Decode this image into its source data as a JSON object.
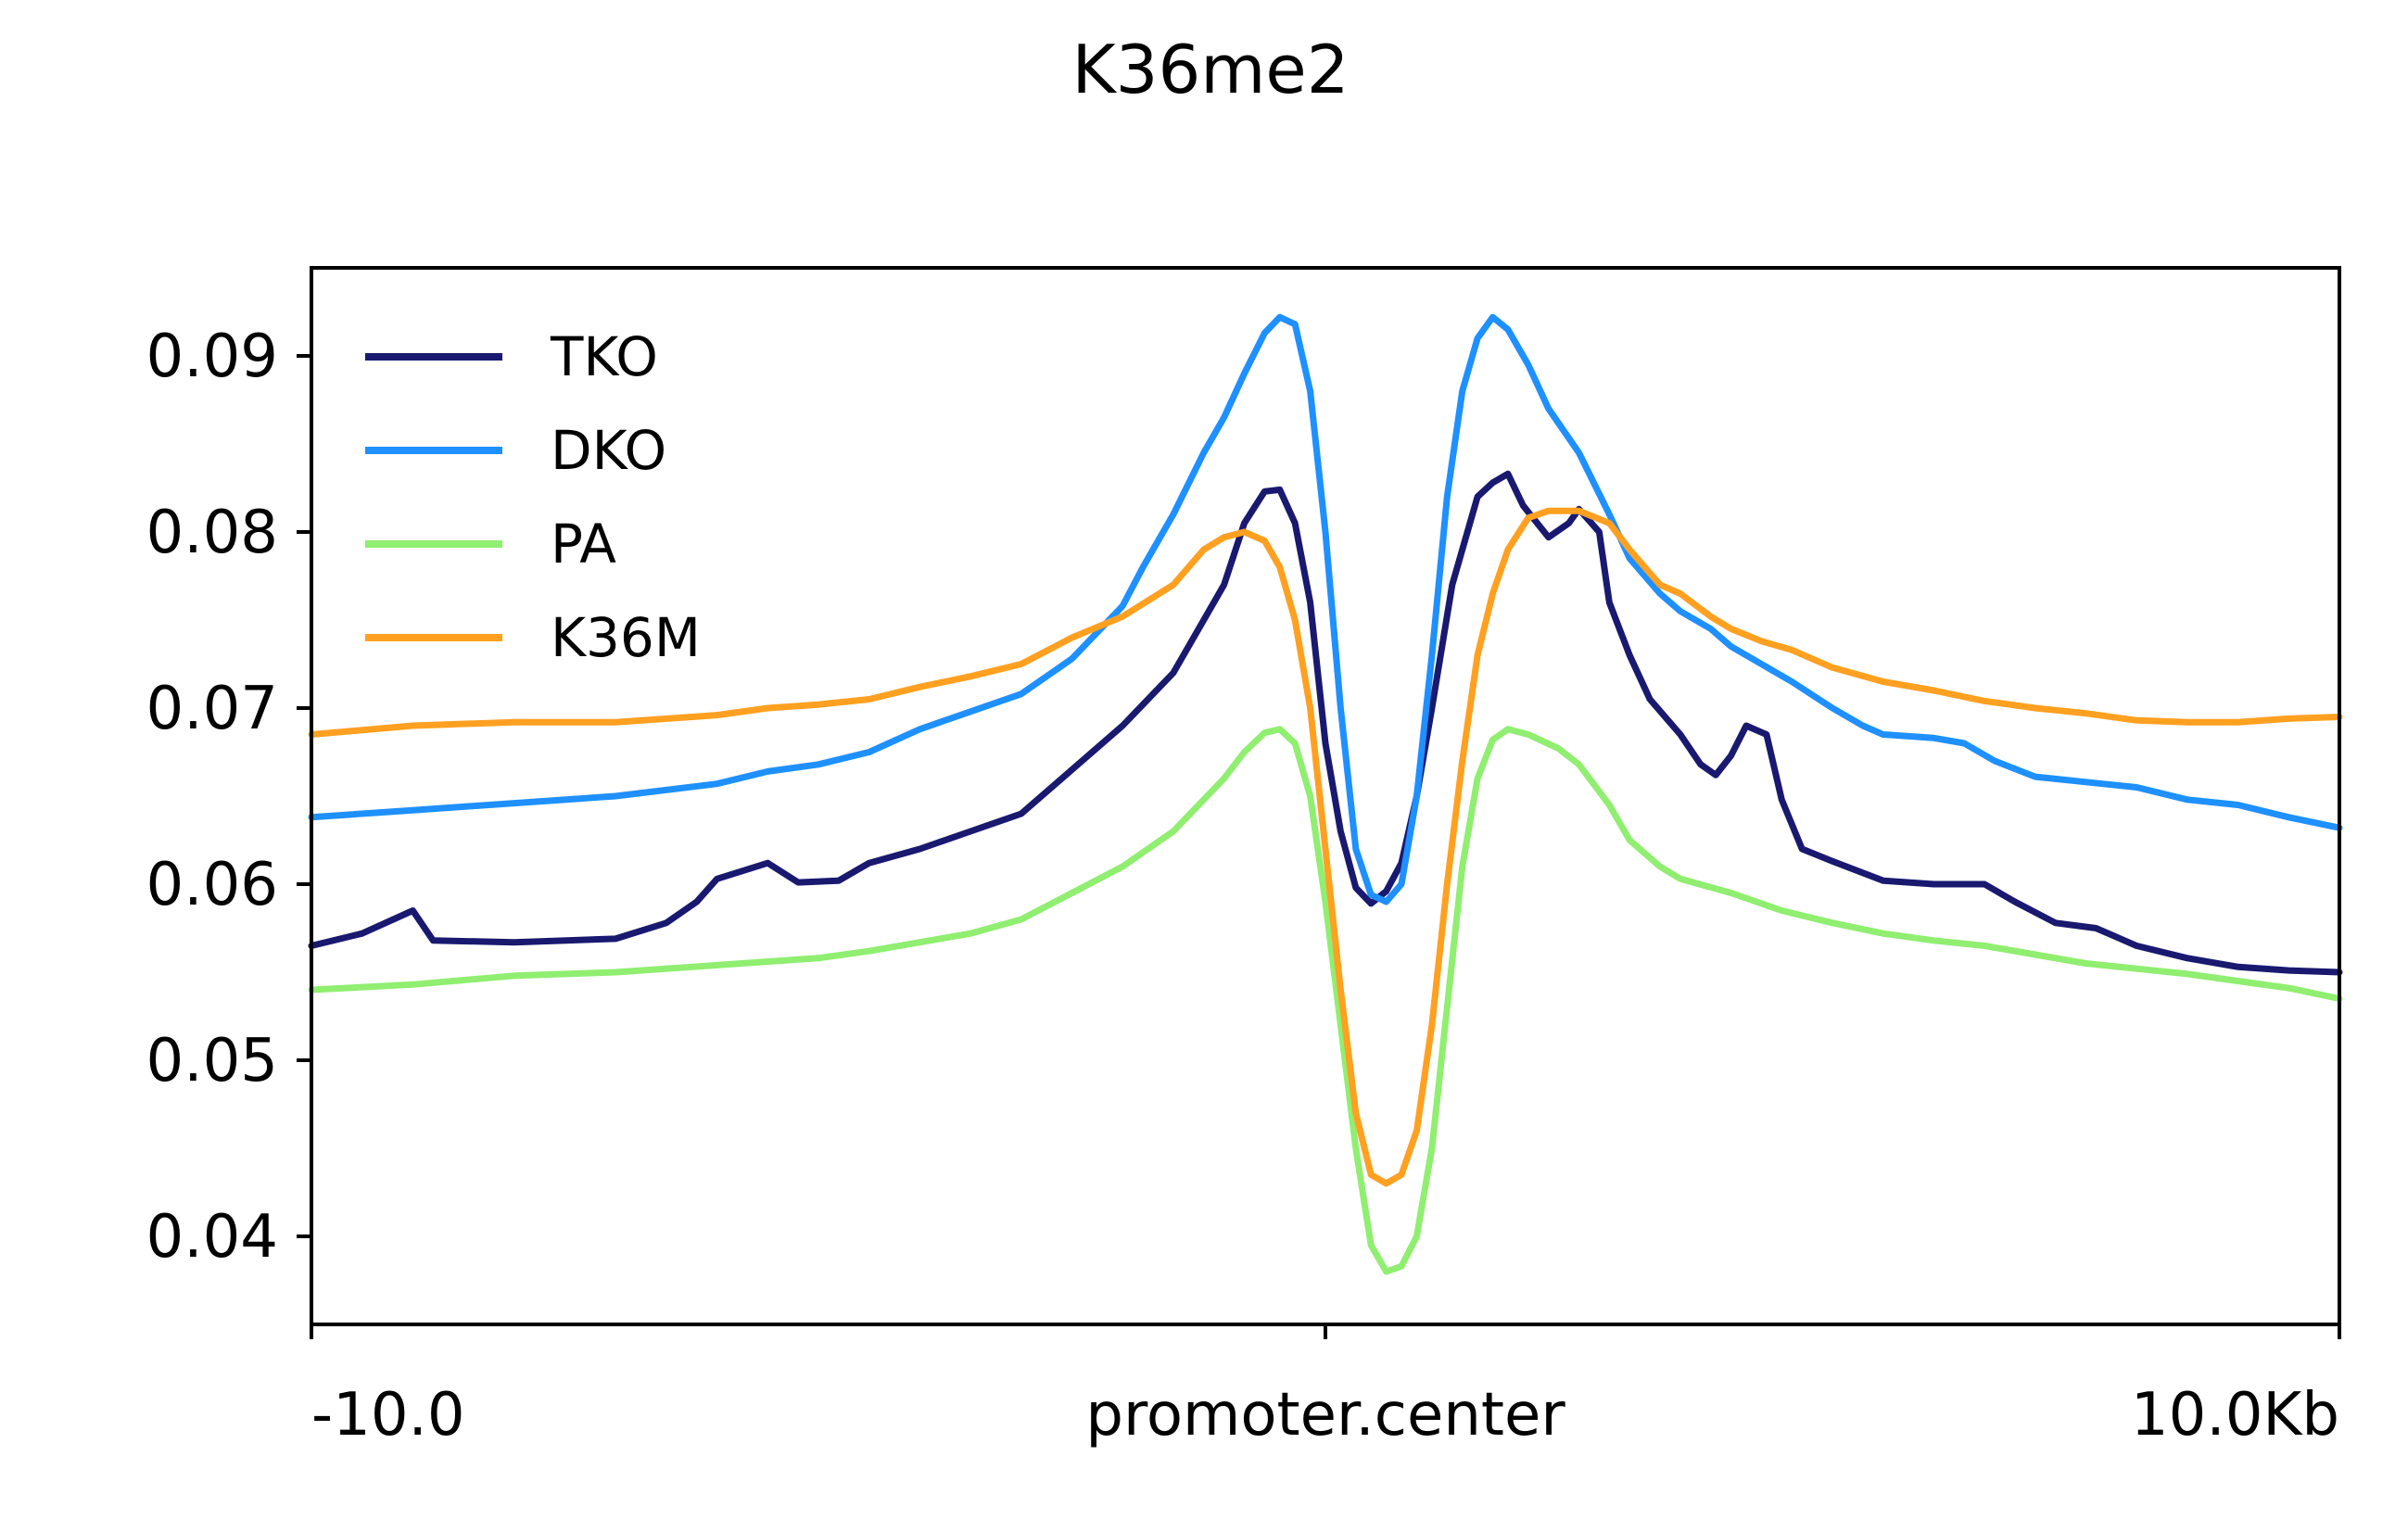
{
  "chart_data": {
    "type": "line",
    "title": "K36me2",
    "xlabel": "",
    "ylabel": "",
    "xlim": [
      -10,
      10
    ],
    "ylim": [
      0.035,
      0.095
    ],
    "x_ticks": [
      {
        "value": -10,
        "label": "-10.0"
      },
      {
        "value": 0,
        "label": "promoter.center"
      },
      {
        "value": 10,
        "label": "10.0Kb"
      }
    ],
    "y_ticks": [
      {
        "value": 0.04,
        "label": "0.04"
      },
      {
        "value": 0.05,
        "label": "0.05"
      },
      {
        "value": 0.06,
        "label": "0.06"
      },
      {
        "value": 0.07,
        "label": "0.07"
      },
      {
        "value": 0.08,
        "label": "0.08"
      },
      {
        "value": 0.09,
        "label": "0.09"
      }
    ],
    "legend_position": "top-left",
    "grid": false,
    "series": [
      {
        "name": "TKO",
        "color": "#191970",
        "points": [
          [
            -10,
            0.0565
          ],
          [
            -9.5,
            0.0572
          ],
          [
            -9.0,
            0.0585
          ],
          [
            -8.8,
            0.0568
          ],
          [
            -8.0,
            0.0567
          ],
          [
            -7.0,
            0.0569
          ],
          [
            -6.5,
            0.0578
          ],
          [
            -6.2,
            0.059
          ],
          [
            -6.0,
            0.0603
          ],
          [
            -5.5,
            0.0612
          ],
          [
            -5.2,
            0.0601
          ],
          [
            -4.8,
            0.0602
          ],
          [
            -4.5,
            0.0612
          ],
          [
            -4.0,
            0.062
          ],
          [
            -3.5,
            0.063
          ],
          [
            -3.0,
            0.064
          ],
          [
            -2.5,
            0.0665
          ],
          [
            -2.0,
            0.069
          ],
          [
            -1.5,
            0.072
          ],
          [
            -1.0,
            0.077
          ],
          [
            -0.8,
            0.0805
          ],
          [
            -0.6,
            0.0823
          ],
          [
            -0.45,
            0.0824
          ],
          [
            -0.3,
            0.0805
          ],
          [
            -0.15,
            0.076
          ],
          [
            0.0,
            0.068
          ],
          [
            0.15,
            0.063
          ],
          [
            0.3,
            0.0598
          ],
          [
            0.45,
            0.0589
          ],
          [
            0.6,
            0.0596
          ],
          [
            0.75,
            0.0612
          ],
          [
            0.9,
            0.065
          ],
          [
            1.05,
            0.07
          ],
          [
            1.25,
            0.077
          ],
          [
            1.5,
            0.082
          ],
          [
            1.65,
            0.0828
          ],
          [
            1.8,
            0.0833
          ],
          [
            1.95,
            0.0815
          ],
          [
            2.2,
            0.0797
          ],
          [
            2.4,
            0.0805
          ],
          [
            2.5,
            0.0813
          ],
          [
            2.7,
            0.08
          ],
          [
            2.8,
            0.076
          ],
          [
            3.0,
            0.073
          ],
          [
            3.2,
            0.0705
          ],
          [
            3.5,
            0.0685
          ],
          [
            3.7,
            0.0668
          ],
          [
            3.85,
            0.0662
          ],
          [
            4.0,
            0.0673
          ],
          [
            4.15,
            0.069
          ],
          [
            4.35,
            0.0685
          ],
          [
            4.5,
            0.0648
          ],
          [
            4.7,
            0.062
          ],
          [
            5.0,
            0.0613
          ],
          [
            5.5,
            0.0602
          ],
          [
            6.0,
            0.06
          ],
          [
            6.5,
            0.06
          ],
          [
            6.8,
            0.059
          ],
          [
            7.2,
            0.0578
          ],
          [
            7.6,
            0.0575
          ],
          [
            8.0,
            0.0565
          ],
          [
            8.5,
            0.0558
          ],
          [
            9.0,
            0.0553
          ],
          [
            9.5,
            0.0551
          ],
          [
            10,
            0.055
          ]
        ]
      },
      {
        "name": "DKO",
        "color": "#1e90ff",
        "points": [
          [
            -10,
            0.0638
          ],
          [
            -9.0,
            0.0642
          ],
          [
            -8.0,
            0.0646
          ],
          [
            -7.0,
            0.065
          ],
          [
            -6.0,
            0.0657
          ],
          [
            -5.5,
            0.0664
          ],
          [
            -5.0,
            0.0668
          ],
          [
            -4.5,
            0.0675
          ],
          [
            -4.0,
            0.0688
          ],
          [
            -3.5,
            0.0698
          ],
          [
            -3.0,
            0.0708
          ],
          [
            -2.5,
            0.0728
          ],
          [
            -2.0,
            0.0758
          ],
          [
            -1.8,
            0.078
          ],
          [
            -1.5,
            0.081
          ],
          [
            -1.2,
            0.0845
          ],
          [
            -1.0,
            0.0865
          ],
          [
            -0.8,
            0.089
          ],
          [
            -0.6,
            0.0913
          ],
          [
            -0.45,
            0.0922
          ],
          [
            -0.3,
            0.0918
          ],
          [
            -0.15,
            0.088
          ],
          [
            0.0,
            0.08
          ],
          [
            0.15,
            0.07
          ],
          [
            0.3,
            0.062
          ],
          [
            0.45,
            0.0594
          ],
          [
            0.6,
            0.059
          ],
          [
            0.75,
            0.06
          ],
          [
            0.9,
            0.065
          ],
          [
            1.05,
            0.073
          ],
          [
            1.2,
            0.082
          ],
          [
            1.35,
            0.088
          ],
          [
            1.5,
            0.091
          ],
          [
            1.65,
            0.0922
          ],
          [
            1.8,
            0.0915
          ],
          [
            2.0,
            0.0895
          ],
          [
            2.2,
            0.087
          ],
          [
            2.5,
            0.0845
          ],
          [
            2.8,
            0.081
          ],
          [
            3.0,
            0.0785
          ],
          [
            3.3,
            0.0765
          ],
          [
            3.5,
            0.0755
          ],
          [
            3.8,
            0.0745
          ],
          [
            4.0,
            0.0735
          ],
          [
            4.3,
            0.0725
          ],
          [
            4.6,
            0.0715
          ],
          [
            5.0,
            0.07
          ],
          [
            5.3,
            0.069
          ],
          [
            5.5,
            0.0685
          ],
          [
            6.0,
            0.0683
          ],
          [
            6.3,
            0.068
          ],
          [
            6.6,
            0.067
          ],
          [
            7.0,
            0.0661
          ],
          [
            7.5,
            0.0658
          ],
          [
            8.0,
            0.0655
          ],
          [
            8.5,
            0.0648
          ],
          [
            9.0,
            0.0645
          ],
          [
            9.5,
            0.0638
          ],
          [
            10,
            0.0632
          ]
        ]
      },
      {
        "name": "PA",
        "color": "#90ee70",
        "points": [
          [
            -10,
            0.054
          ],
          [
            -9.0,
            0.0543
          ],
          [
            -8.0,
            0.0548
          ],
          [
            -7.0,
            0.055
          ],
          [
            -6.0,
            0.0554
          ],
          [
            -5.0,
            0.0558
          ],
          [
            -4.5,
            0.0562
          ],
          [
            -4.0,
            0.0567
          ],
          [
            -3.5,
            0.0572
          ],
          [
            -3.0,
            0.058
          ],
          [
            -2.5,
            0.0595
          ],
          [
            -2.0,
            0.061
          ],
          [
            -1.5,
            0.063
          ],
          [
            -1.0,
            0.066
          ],
          [
            -0.8,
            0.0675
          ],
          [
            -0.6,
            0.0686
          ],
          [
            -0.45,
            0.0688
          ],
          [
            -0.3,
            0.068
          ],
          [
            -0.15,
            0.065
          ],
          [
            0.0,
            0.059
          ],
          [
            0.15,
            0.052
          ],
          [
            0.3,
            0.045
          ],
          [
            0.45,
            0.0395
          ],
          [
            0.6,
            0.038
          ],
          [
            0.75,
            0.0383
          ],
          [
            0.9,
            0.04
          ],
          [
            1.05,
            0.045
          ],
          [
            1.2,
            0.053
          ],
          [
            1.35,
            0.061
          ],
          [
            1.5,
            0.066
          ],
          [
            1.65,
            0.0682
          ],
          [
            1.8,
            0.0688
          ],
          [
            2.0,
            0.0685
          ],
          [
            2.3,
            0.0677
          ],
          [
            2.5,
            0.0668
          ],
          [
            2.8,
            0.0645
          ],
          [
            3.0,
            0.0625
          ],
          [
            3.3,
            0.061
          ],
          [
            3.5,
            0.0603
          ],
          [
            4.0,
            0.0595
          ],
          [
            4.5,
            0.0585
          ],
          [
            5.0,
            0.0578
          ],
          [
            5.5,
            0.0572
          ],
          [
            6.0,
            0.0568
          ],
          [
            6.5,
            0.0565
          ],
          [
            7.0,
            0.056
          ],
          [
            7.5,
            0.0555
          ],
          [
            8.0,
            0.0552
          ],
          [
            8.5,
            0.0549
          ],
          [
            9.0,
            0.0545
          ],
          [
            9.5,
            0.0541
          ],
          [
            10,
            0.0535
          ]
        ]
      },
      {
        "name": "K36M",
        "color": "#ffa020",
        "points": [
          [
            -10,
            0.0685
          ],
          [
            -9.0,
            0.069
          ],
          [
            -8.0,
            0.0692
          ],
          [
            -7.0,
            0.0692
          ],
          [
            -6.0,
            0.0696
          ],
          [
            -5.5,
            0.07
          ],
          [
            -5.0,
            0.0702
          ],
          [
            -4.5,
            0.0705
          ],
          [
            -4.0,
            0.0712
          ],
          [
            -3.5,
            0.0718
          ],
          [
            -3.0,
            0.0725
          ],
          [
            -2.5,
            0.074
          ],
          [
            -2.0,
            0.0752
          ],
          [
            -1.5,
            0.077
          ],
          [
            -1.2,
            0.079
          ],
          [
            -1.0,
            0.0797
          ],
          [
            -0.8,
            0.08
          ],
          [
            -0.6,
            0.0795
          ],
          [
            -0.45,
            0.078
          ],
          [
            -0.3,
            0.075
          ],
          [
            -0.15,
            0.07
          ],
          [
            0.0,
            0.062
          ],
          [
            0.15,
            0.054
          ],
          [
            0.3,
            0.047
          ],
          [
            0.45,
            0.0435
          ],
          [
            0.6,
            0.043
          ],
          [
            0.75,
            0.0435
          ],
          [
            0.9,
            0.046
          ],
          [
            1.05,
            0.052
          ],
          [
            1.2,
            0.06
          ],
          [
            1.35,
            0.067
          ],
          [
            1.5,
            0.073
          ],
          [
            1.65,
            0.0765
          ],
          [
            1.8,
            0.079
          ],
          [
            2.0,
            0.0808
          ],
          [
            2.2,
            0.0812
          ],
          [
            2.5,
            0.0812
          ],
          [
            2.8,
            0.0805
          ],
          [
            3.0,
            0.079
          ],
          [
            3.3,
            0.077
          ],
          [
            3.5,
            0.0765
          ],
          [
            3.8,
            0.0752
          ],
          [
            4.0,
            0.0745
          ],
          [
            4.3,
            0.0738
          ],
          [
            4.6,
            0.0733
          ],
          [
            5.0,
            0.0723
          ],
          [
            5.5,
            0.0715
          ],
          [
            6.0,
            0.071
          ],
          [
            6.5,
            0.0704
          ],
          [
            7.0,
            0.07
          ],
          [
            7.5,
            0.0697
          ],
          [
            8.0,
            0.0693
          ],
          [
            8.5,
            0.0692
          ],
          [
            9.0,
            0.0692
          ],
          [
            9.5,
            0.0694
          ],
          [
            10,
            0.0695
          ]
        ]
      }
    ]
  }
}
